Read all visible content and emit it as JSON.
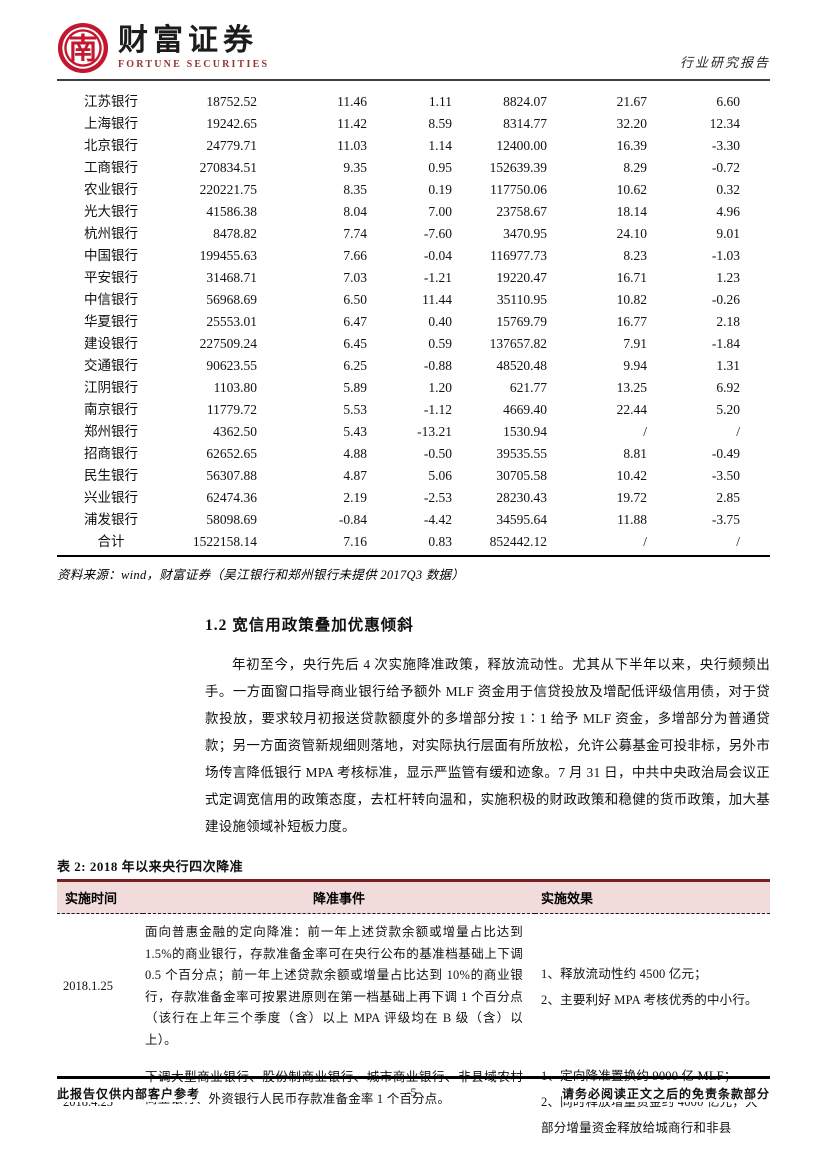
{
  "header": {
    "brand_zh": "财富证券",
    "brand_en": "FORTUNE SECURITIES",
    "doc_type": "行业研究报告",
    "seal_glyph": "南"
  },
  "table1": {
    "rows": [
      [
        "江苏银行",
        "18752.52",
        "11.46",
        "1.11",
        "8824.07",
        "21.67",
        "6.60"
      ],
      [
        "上海银行",
        "19242.65",
        "11.42",
        "8.59",
        "8314.77",
        "32.20",
        "12.34"
      ],
      [
        "北京银行",
        "24779.71",
        "11.03",
        "1.14",
        "12400.00",
        "16.39",
        "-3.30"
      ],
      [
        "工商银行",
        "270834.51",
        "9.35",
        "0.95",
        "152639.39",
        "8.29",
        "-0.72"
      ],
      [
        "农业银行",
        "220221.75",
        "8.35",
        "0.19",
        "117750.06",
        "10.62",
        "0.32"
      ],
      [
        "光大银行",
        "41586.38",
        "8.04",
        "7.00",
        "23758.67",
        "18.14",
        "4.96"
      ],
      [
        "杭州银行",
        "8478.82",
        "7.74",
        "-7.60",
        "3470.95",
        "24.10",
        "9.01"
      ],
      [
        "中国银行",
        "199455.63",
        "7.66",
        "-0.04",
        "116977.73",
        "8.23",
        "-1.03"
      ],
      [
        "平安银行",
        "31468.71",
        "7.03",
        "-1.21",
        "19220.47",
        "16.71",
        "1.23"
      ],
      [
        "中信银行",
        "56968.69",
        "6.50",
        "11.44",
        "35110.95",
        "10.82",
        "-0.26"
      ],
      [
        "华夏银行",
        "25553.01",
        "6.47",
        "0.40",
        "15769.79",
        "16.77",
        "2.18"
      ],
      [
        "建设银行",
        "227509.24",
        "6.45",
        "0.59",
        "137657.82",
        "7.91",
        "-1.84"
      ],
      [
        "交通银行",
        "90623.55",
        "6.25",
        "-0.88",
        "48520.48",
        "9.94",
        "1.31"
      ],
      [
        "江阴银行",
        "1103.80",
        "5.89",
        "1.20",
        "621.77",
        "13.25",
        "6.92"
      ],
      [
        "南京银行",
        "11779.72",
        "5.53",
        "-1.12",
        "4669.40",
        "22.44",
        "5.20"
      ],
      [
        "郑州银行",
        "4362.50",
        "5.43",
        "-13.21",
        "1530.94",
        "/",
        "/"
      ],
      [
        "招商银行",
        "62652.65",
        "4.88",
        "-0.50",
        "39535.55",
        "8.81",
        "-0.49"
      ],
      [
        "民生银行",
        "56307.88",
        "4.87",
        "5.06",
        "30705.58",
        "10.42",
        "-3.50"
      ],
      [
        "兴业银行",
        "62474.36",
        "2.19",
        "-2.53",
        "28230.43",
        "19.72",
        "2.85"
      ],
      [
        "浦发银行",
        "58098.69",
        "-0.84",
        "-4.42",
        "34595.64",
        "11.88",
        "-3.75"
      ]
    ],
    "total_row": [
      "合计",
      "1522158.14",
      "7.16",
      "0.83",
      "852442.12",
      "/",
      "/"
    ],
    "source_note": "资料来源：wind，财富证券（吴江银行和郑州银行未提供 2017Q3 数据）"
  },
  "section": {
    "heading": "1.2 宽信用政策叠加优惠倾斜",
    "paragraph": "年初至今，央行先后 4 次实施降准政策，释放流动性。尤其从下半年以来，央行频频出手。一方面窗口指导商业银行给予额外 MLF 资金用于信贷投放及增配低评级信用债，对于贷款投放，要求较月初报送贷款额度外的多增部分按 1∶1 给予 MLF 资金，多增部分为普通贷款；另一方面资管新规细则落地，对实际执行层面有所放松，允许公募基金可投非标，另外市场传言降低银行 MPA 考核标准，显示严监管有缓和迹象。7 月 31 日，中共中央政治局会议正式定调宽信用的政策态度，去杠杆转向温和，实施积极的财政政策和稳健的货币政策，加大基建设施领域补短板力度。"
  },
  "table2": {
    "title": "表 2:  2018 年以来央行四次降准",
    "columns": [
      "实施时间",
      "降准事件",
      "实施效果"
    ],
    "rows": [
      {
        "date": "2018.1.25",
        "event": "面向普惠金融的定向降准：前一年上述贷款余额或增量占比达到 1.5%的商业银行，存款准备金率可在央行公布的基准档基础上下调 0.5 个百分点；前一年上述贷款余额或增量占比达到 10%的商业银行，存款准备金率可按累进原则在第一档基础上再下调 1 个百分点（该行在上年三个季度（含）以上 MPA 评级均在 B 级（含）以上）。",
        "effects": [
          "1、释放流动性约 4500 亿元；",
          "2、主要利好 MPA 考核优秀的中小行。"
        ]
      },
      {
        "date": "2018.4.25",
        "event": "下调大型商业银行、股份制商业银行、城市商业银行、非县域农村商业银行、外资银行人民币存款准备金率 1 个百分点。",
        "effects": [
          "1、定向降准置换约 9000 亿 MLF；",
          "2、同时释放增量资金约 4000 亿元，大部分增量资金释放给城商行和非县"
        ]
      }
    ]
  },
  "footer": {
    "left": "此报告仅供内部客户参考",
    "page_number": "-5-",
    "right": "请务必阅读正文之后的免责条款部分"
  },
  "colors": {
    "seal_red": "#c2172f",
    "brand_red": "#943634",
    "table2_header_bg": "#f2dcdb",
    "table2_border_red": "#7b2022"
  }
}
